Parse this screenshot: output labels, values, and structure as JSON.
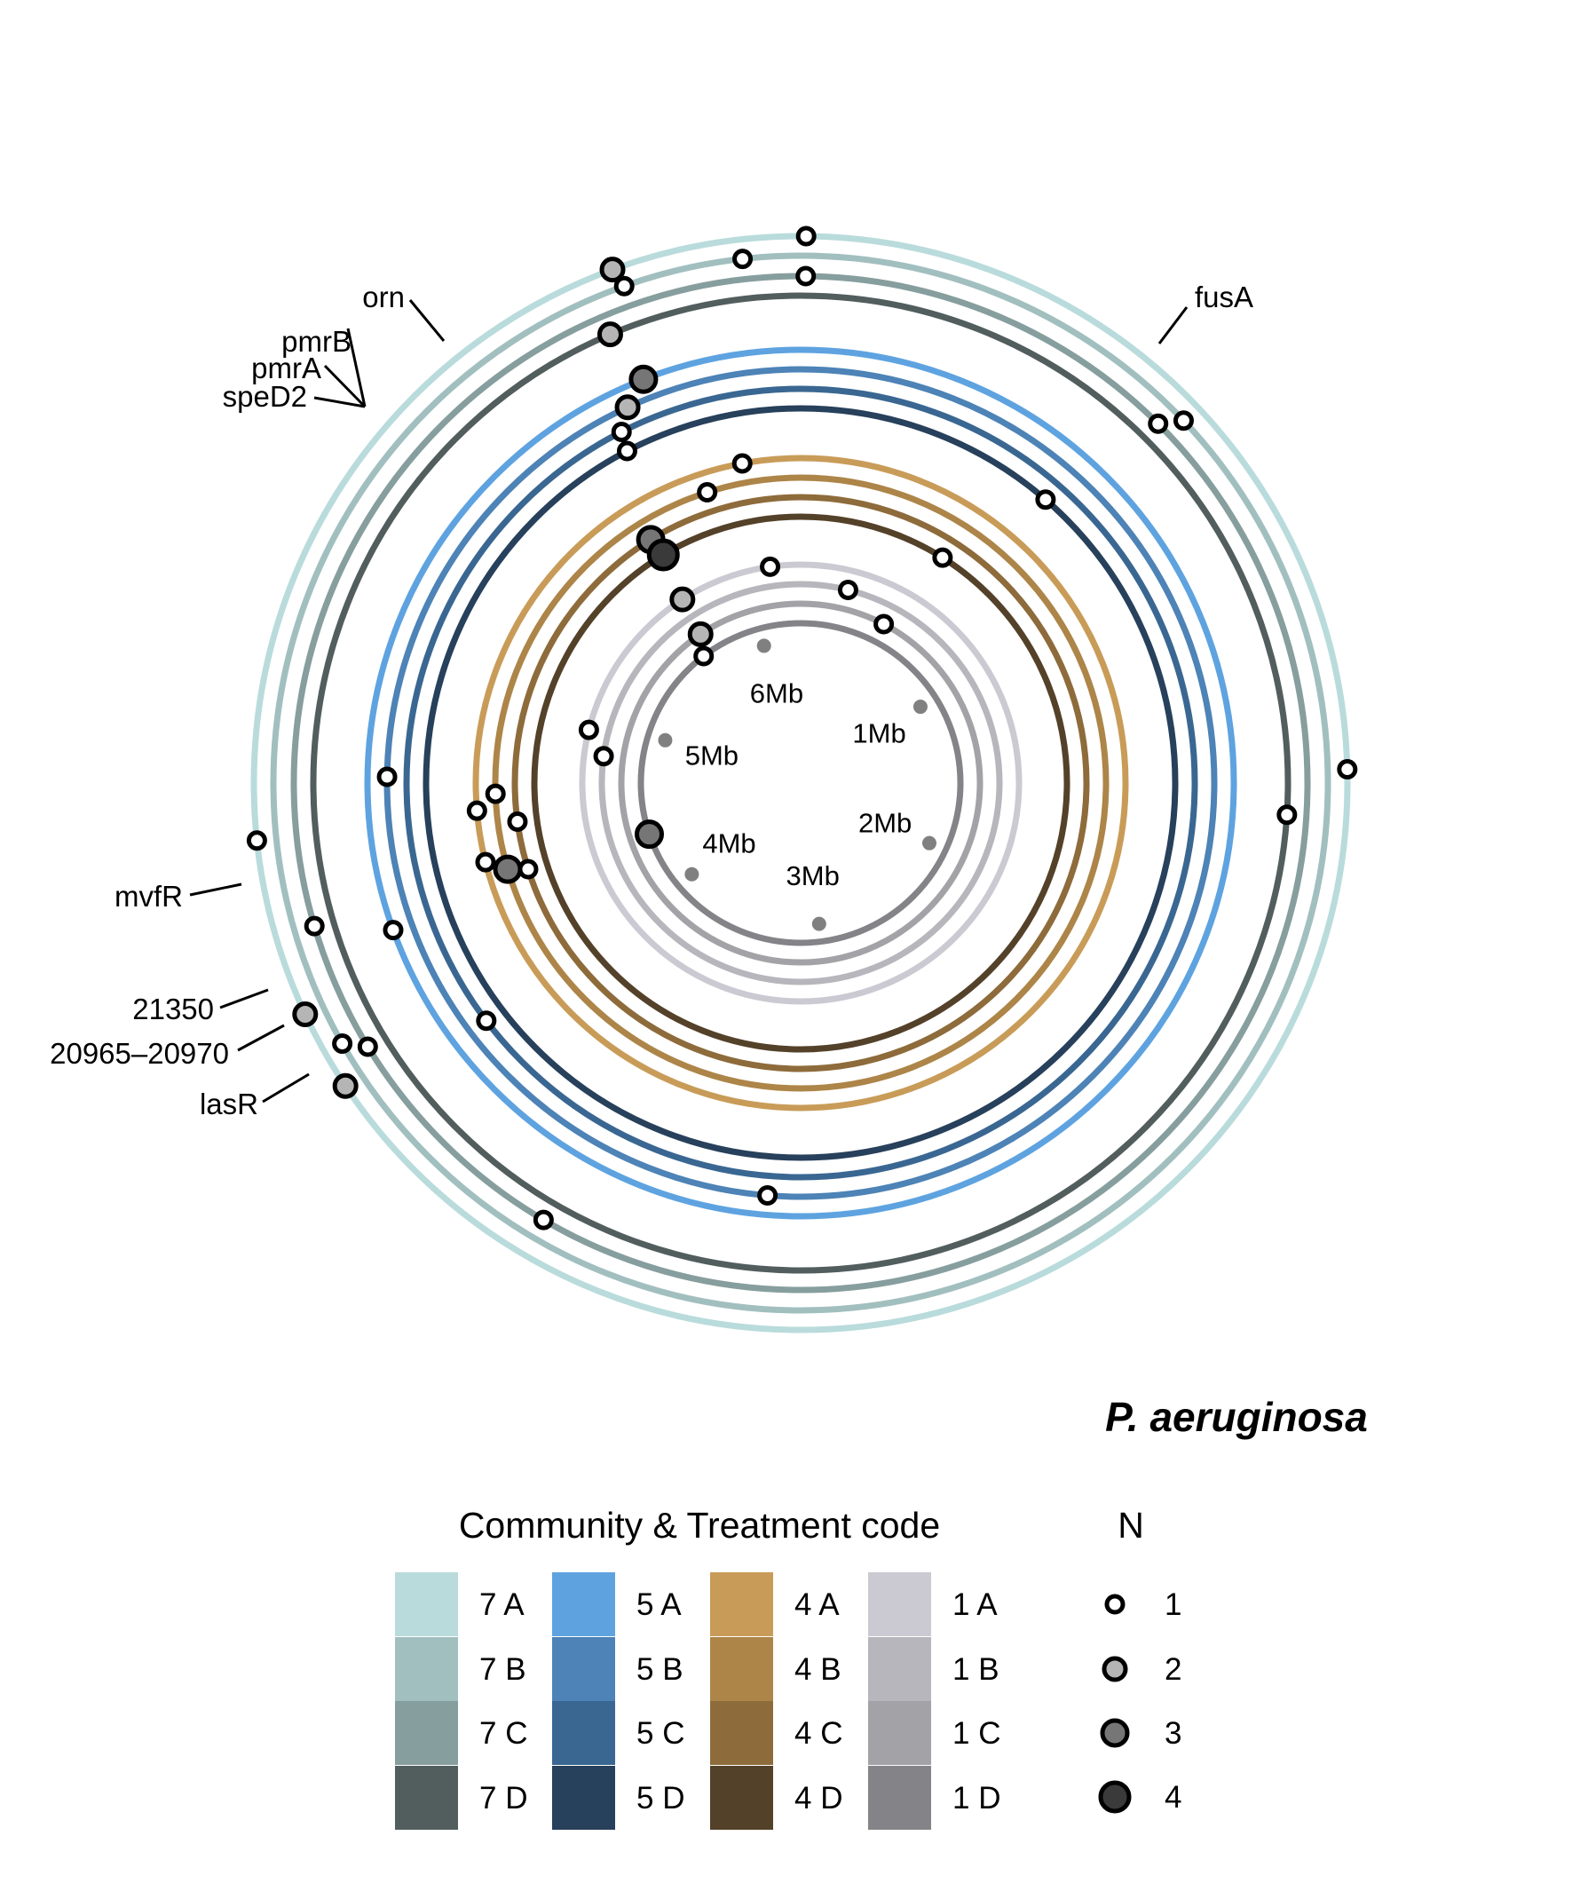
{
  "chart_data": {
    "type": "circular genome mutation plot",
    "species": "P. aeruginosa",
    "legend_title_color": "Community & Treatment code",
    "legend_title_size": "N",
    "rings": [
      {
        "code": "7 A",
        "color": "#b9dbdb"
      },
      {
        "code": "7 B",
        "color": "#a2bfbf"
      },
      {
        "code": "7 C",
        "color": "#879e9e"
      },
      {
        "code": "7 D",
        "color": "#525e5d"
      },
      {
        "code": "5 A",
        "color": "#5ea3e0"
      },
      {
        "code": "5 B",
        "color": "#4d83b6"
      },
      {
        "code": "5 C",
        "color": "#3a6792"
      },
      {
        "code": "5 D",
        "color": "#27405b"
      },
      {
        "code": "4 A",
        "color": "#c89c58"
      },
      {
        "code": "4 B",
        "color": "#ad8548"
      },
      {
        "code": "4 C",
        "color": "#8e6b3b"
      },
      {
        "code": "4 D",
        "color": "#544129"
      },
      {
        "code": "1 A",
        "color": "#cbcad2"
      },
      {
        "code": "1 B",
        "color": "#b6b6bc"
      },
      {
        "code": "1 C",
        "color": "#a3a2a7"
      },
      {
        "code": "1 D",
        "color": "#848388"
      }
    ],
    "size_levels": [
      {
        "n": "1",
        "fill": "#ffffff"
      },
      {
        "n": "2",
        "fill": "#b5b5b5"
      },
      {
        "n": "3",
        "fill": "#767676"
      },
      {
        "n": "4",
        "fill": "#3a3a3a"
      }
    ],
    "genome_ticks": [
      {
        "label": "1Mb",
        "mb": 1
      },
      {
        "label": "2Mb",
        "mb": 2
      },
      {
        "label": "3Mb",
        "mb": 3
      },
      {
        "label": "4Mb",
        "mb": 4
      },
      {
        "label": "5Mb",
        "mb": 5
      },
      {
        "label": "6Mb",
        "mb": 6
      }
    ],
    "mutations": [
      {
        "ring": "7 A",
        "position_mb": 0.01,
        "n": 1
      },
      {
        "ring": "7 A",
        "position_mb": 5.91,
        "n": 2
      },
      {
        "ring": "7 A",
        "position_mb": 4.59,
        "n": 1
      },
      {
        "ring": "7 A",
        "position_mb": 4.26,
        "n": 2
      },
      {
        "ring": "7 A",
        "position_mb": 4.11,
        "n": 2
      },
      {
        "ring": "7 A",
        "position_mb": 1.54,
        "n": 1
      },
      {
        "ring": "7 B",
        "position_mb": 6.15,
        "n": 1
      },
      {
        "ring": "7 B",
        "position_mb": 5.92,
        "n": 1
      },
      {
        "ring": "7 B",
        "position_mb": 0.81,
        "n": 1
      },
      {
        "ring": "7 B",
        "position_mb": 4.18,
        "n": 1
      },
      {
        "ring": "7 C",
        "position_mb": 0.01,
        "n": 1
      },
      {
        "ring": "7 C",
        "position_mb": 0.78,
        "n": 1
      },
      {
        "ring": "7 C",
        "position_mb": 4.41,
        "n": 1
      },
      {
        "ring": "7 C",
        "position_mb": 4.15,
        "n": 1
      },
      {
        "ring": "7 C",
        "position_mb": 3.66,
        "n": 1
      },
      {
        "ring": "7 D",
        "position_mb": 5.86,
        "n": 2
      },
      {
        "ring": "7 D",
        "position_mb": 1.63,
        "n": 1
      },
      {
        "ring": "5 A",
        "position_mb": 5.89,
        "n": 3
      },
      {
        "ring": "5 A",
        "position_mb": 4.35,
        "n": 1
      },
      {
        "ring": "5 B",
        "position_mb": 5.83,
        "n": 2
      },
      {
        "ring": "5 B",
        "position_mb": 4.71,
        "n": 1
      },
      {
        "ring": "5 B",
        "position_mb": 3.21,
        "n": 1
      },
      {
        "ring": "5 C",
        "position_mb": 5.79,
        "n": 1
      },
      {
        "ring": "5 C",
        "position_mb": 4.05,
        "n": 1
      },
      {
        "ring": "5 D",
        "position_mb": 5.78,
        "n": 1
      },
      {
        "ring": "5 D",
        "position_mb": 0.71,
        "n": 1
      },
      {
        "ring": "4 A",
        "position_mb": 6.08,
        "n": 1
      },
      {
        "ring": "4 A",
        "position_mb": 4.61,
        "n": 1
      },
      {
        "ring": "4 A",
        "position_mb": 4.45,
        "n": 1
      },
      {
        "ring": "4 B",
        "position_mb": 5.95,
        "n": 1
      },
      {
        "ring": "4 B",
        "position_mb": 4.66,
        "n": 1
      },
      {
        "ring": "4 B",
        "position_mb": 4.41,
        "n": 3
      },
      {
        "ring": "4 C",
        "position_mb": 5.71,
        "n": 3
      },
      {
        "ring": "4 C",
        "position_mb": 4.56,
        "n": 1
      },
      {
        "ring": "4 C",
        "position_mb": 4.39,
        "n": 1
      },
      {
        "ring": "4 D",
        "position_mb": 5.72,
        "n": 4
      },
      {
        "ring": "4 D",
        "position_mb": 0.56,
        "n": 1
      },
      {
        "ring": "1 A",
        "position_mb": 6.12,
        "n": 1
      },
      {
        "ring": "1 A",
        "position_mb": 5.69,
        "n": 2
      },
      {
        "ring": "1 A",
        "position_mb": 4.94,
        "n": 1
      },
      {
        "ring": "1 B",
        "position_mb": 0.24,
        "n": 1
      },
      {
        "ring": "1 B",
        "position_mb": 4.83,
        "n": 1
      },
      {
        "ring": "1 C",
        "position_mb": 5.67,
        "n": 2
      },
      {
        "ring": "1 C",
        "position_mb": 0.48,
        "n": 1
      },
      {
        "ring": "1 D",
        "position_mb": 5.61,
        "n": 1
      },
      {
        "ring": "1 D",
        "position_mb": 4.37,
        "n": 3
      }
    ],
    "gene_labels": [
      {
        "text": "orn"
      },
      {
        "text": "pmrB"
      },
      {
        "text": "pmrA"
      },
      {
        "text": "speD2"
      },
      {
        "text": "fusA"
      },
      {
        "text": "mvfR"
      },
      {
        "text": "21350"
      },
      {
        "text": "20965–20970"
      },
      {
        "text": "lasR"
      }
    ]
  }
}
